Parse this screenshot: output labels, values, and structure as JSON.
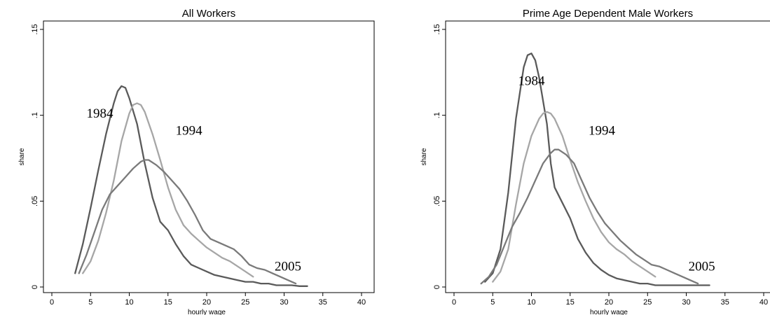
{
  "chart_data": [
    {
      "type": "line",
      "title": "All Workers",
      "xlabel": "hourly wage",
      "ylabel": "share",
      "xlim": [
        0,
        40
      ],
      "ylim": [
        0,
        0.15
      ],
      "xticks": [
        "0",
        "5",
        "10",
        "15",
        "20",
        "25",
        "30",
        "35",
        "40"
      ],
      "yticks": [
        "0",
        ".05",
        ".1",
        ".15"
      ],
      "grid": false,
      "series": [
        {
          "name": "1984",
          "color": "#5a5a5a",
          "x": [
            3,
            4,
            5,
            6,
            7,
            8,
            8.5,
            9,
            9.5,
            10,
            11,
            12,
            13,
            14,
            15,
            16,
            17,
            18,
            19,
            20,
            21,
            22,
            23,
            24,
            25,
            26,
            27,
            28,
            29,
            30,
            31,
            32,
            33
          ],
          "y": [
            0.008,
            0.025,
            0.046,
            0.068,
            0.089,
            0.107,
            0.114,
            0.117,
            0.116,
            0.11,
            0.095,
            0.072,
            0.052,
            0.038,
            0.033,
            0.025,
            0.018,
            0.013,
            0.011,
            0.009,
            0.007,
            0.006,
            0.005,
            0.004,
            0.003,
            0.003,
            0.002,
            0.002,
            0.001,
            0.001,
            0.001,
            0.0005,
            0.0005
          ],
          "label": "1984",
          "label_at": [
            6.2,
            0.101
          ]
        },
        {
          "name": "1994",
          "color": "#a6a6a6",
          "x": [
            4,
            5,
            6,
            7,
            8,
            9,
            10,
            10.5,
            11,
            11.5,
            12,
            13,
            14,
            15,
            16,
            17,
            18,
            19,
            20,
            21,
            22,
            23,
            24,
            25,
            26
          ],
          "y": [
            0.008,
            0.015,
            0.027,
            0.043,
            0.062,
            0.085,
            0.101,
            0.106,
            0.107,
            0.106,
            0.102,
            0.089,
            0.074,
            0.058,
            0.045,
            0.036,
            0.031,
            0.027,
            0.023,
            0.02,
            0.017,
            0.015,
            0.012,
            0.009,
            0.006
          ],
          "label": "1994",
          "label_at": [
            17.7,
            0.091
          ]
        },
        {
          "name": "2005",
          "color": "#7a7a7a",
          "x": [
            3.5,
            4.5,
            5.5,
            6.5,
            7.5,
            8.5,
            9.5,
            10.5,
            11.5,
            12,
            12.5,
            13.5,
            14.5,
            15.5,
            16.5,
            17.5,
            18.5,
            19.5,
            20.5,
            21.5,
            22.5,
            23.5,
            24.5,
            25.5,
            26.5,
            27.5,
            28.5,
            29.5,
            30.5,
            31.5
          ],
          "y": [
            0.008,
            0.019,
            0.032,
            0.045,
            0.054,
            0.059,
            0.064,
            0.069,
            0.073,
            0.074,
            0.074,
            0.071,
            0.067,
            0.062,
            0.057,
            0.05,
            0.042,
            0.033,
            0.028,
            0.026,
            0.024,
            0.022,
            0.018,
            0.013,
            0.011,
            0.01,
            0.008,
            0.006,
            0.004,
            0.002
          ],
          "label": "2005",
          "label_at": [
            30.5,
            0.012
          ]
        }
      ]
    },
    {
      "type": "line",
      "title": "Prime Age Dependent Male Workers",
      "xlabel": "hourly wage",
      "ylabel": "share",
      "xlim": [
        0,
        40
      ],
      "ylim": [
        0,
        0.15
      ],
      "xticks": [
        "0",
        "5",
        "10",
        "15",
        "20",
        "25",
        "30",
        "35",
        "40"
      ],
      "yticks": [
        "0",
        ".05",
        ".1",
        ".15"
      ],
      "grid": false,
      "series": [
        {
          "name": "1984",
          "color": "#5a5a5a",
          "x": [
            4,
            5,
            6,
            7,
            8,
            9,
            9.5,
            10,
            10.5,
            11,
            12,
            12.5,
            13,
            14,
            15,
            16,
            17,
            18,
            19,
            20,
            21,
            22,
            23,
            24,
            25,
            26,
            27,
            28,
            29,
            30,
            31,
            32,
            33
          ],
          "y": [
            0.003,
            0.008,
            0.022,
            0.055,
            0.098,
            0.128,
            0.135,
            0.136,
            0.132,
            0.122,
            0.095,
            0.072,
            0.058,
            0.049,
            0.04,
            0.028,
            0.02,
            0.014,
            0.01,
            0.007,
            0.005,
            0.004,
            0.003,
            0.002,
            0.002,
            0.001,
            0.001,
            0.001,
            0.001,
            0.001,
            0.001,
            0.001,
            0.001
          ],
          "label": "1984",
          "label_at": [
            10,
            0.12
          ]
        },
        {
          "name": "1994",
          "color": "#a6a6a6",
          "x": [
            5,
            6,
            7,
            8,
            9,
            10,
            11,
            11.5,
            12,
            12.5,
            13,
            14,
            15,
            16,
            17,
            18,
            19,
            20,
            21,
            22,
            23,
            24,
            25,
            26
          ],
          "y": [
            0.003,
            0.009,
            0.022,
            0.048,
            0.072,
            0.088,
            0.098,
            0.101,
            0.102,
            0.101,
            0.098,
            0.088,
            0.074,
            0.061,
            0.05,
            0.04,
            0.032,
            0.026,
            0.022,
            0.019,
            0.015,
            0.012,
            0.009,
            0.006
          ],
          "label": "1994",
          "label_at": [
            19.1,
            0.091
          ]
        },
        {
          "name": "2005",
          "color": "#7a7a7a",
          "x": [
            3.5,
            4.5,
            5.5,
            6.5,
            7.5,
            8.5,
            9.5,
            10.5,
            11.5,
            12.5,
            13,
            13.5,
            14.5,
            15.5,
            16.5,
            17.5,
            18.5,
            19.5,
            20.5,
            21.5,
            22.5,
            23.5,
            24.5,
            25.5,
            26.5,
            27.5,
            28.5,
            29.5,
            30.5,
            31.5
          ],
          "y": [
            0.002,
            0.006,
            0.013,
            0.024,
            0.035,
            0.043,
            0.052,
            0.062,
            0.072,
            0.078,
            0.08,
            0.08,
            0.077,
            0.072,
            0.062,
            0.052,
            0.044,
            0.037,
            0.032,
            0.027,
            0.023,
            0.019,
            0.016,
            0.013,
            0.012,
            0.01,
            0.008,
            0.006,
            0.004,
            0.002
          ],
          "label": "2005",
          "label_at": [
            32,
            0.012
          ]
        }
      ]
    }
  ]
}
